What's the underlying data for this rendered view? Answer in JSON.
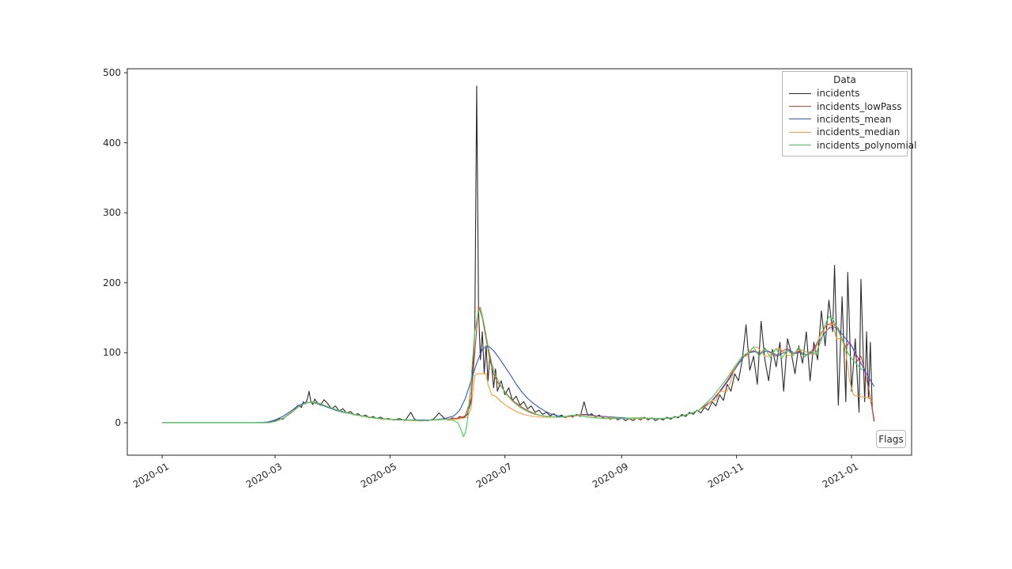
{
  "figure": {
    "background": "#ffffff"
  },
  "flags_button": {
    "label": "Flags"
  },
  "legend": {
    "title": "Data",
    "position": "upper right"
  },
  "chart_data": {
    "type": "line",
    "title": "",
    "xlabel": "",
    "ylabel": "",
    "x_unit": "days since 2020-01-01",
    "xlim_days": [
      -18.5,
      397.9
    ],
    "ylim": [
      -46.3,
      505.7
    ],
    "grid": false,
    "axis_color": "#262626",
    "y_ticks": [
      0,
      100,
      200,
      300,
      400,
      500
    ],
    "x_ticks": [
      {
        "day": 0,
        "label": "2020-01"
      },
      {
        "day": 60,
        "label": "2020-03"
      },
      {
        "day": 121,
        "label": "2020-05"
      },
      {
        "day": 182,
        "label": "2020-07"
      },
      {
        "day": 244,
        "label": "2020-09"
      },
      {
        "day": 305,
        "label": "2020-11"
      },
      {
        "day": 366,
        "label": "2021-01"
      }
    ],
    "series": [
      {
        "name": "incidents",
        "color": "#2b2b2b",
        "x": [
          0,
          6,
          12,
          18,
          24,
          30,
          36,
          42,
          48,
          54,
          57,
          60,
          62,
          64,
          66,
          68,
          70,
          72,
          74,
          75,
          76,
          77,
          78,
          79,
          80,
          81,
          82,
          84,
          86,
          88,
          90,
          92,
          94,
          96,
          98,
          100,
          102,
          104,
          106,
          108,
          110,
          112,
          114,
          116,
          118,
          120,
          123,
          126,
          129,
          132,
          134,
          136,
          138,
          141,
          144,
          147,
          150,
          152,
          154,
          156,
          158,
          160,
          162,
          164,
          166,
          167,
          168,
          169,
          170,
          171,
          172,
          173,
          174,
          175,
          176,
          177,
          178,
          180,
          182,
          184,
          186,
          188,
          190,
          192,
          194,
          196,
          198,
          200,
          202,
          204,
          206,
          208,
          210,
          212,
          214,
          216,
          218,
          220,
          222,
          224,
          226,
          228,
          230,
          232,
          234,
          236,
          238,
          240,
          242,
          244,
          246,
          248,
          250,
          252,
          254,
          256,
          258,
          260,
          262,
          264,
          266,
          268,
          270,
          272,
          274,
          276,
          278,
          280,
          282,
          284,
          286,
          288,
          290,
          292,
          294,
          296,
          298,
          300,
          302,
          304,
          306,
          308,
          310,
          312,
          314,
          316,
          318,
          320,
          322,
          324,
          326,
          328,
          330,
          332,
          334,
          336,
          338,
          340,
          342,
          344,
          346,
          348,
          350,
          352,
          354,
          356,
          357,
          359,
          361,
          363,
          364,
          366,
          368,
          370,
          371,
          373,
          374,
          375,
          376,
          377,
          378
        ],
        "y": [
          0,
          0,
          0,
          0,
          0,
          0,
          0,
          0,
          0,
          0,
          1,
          3,
          6,
          5,
          10,
          14,
          18,
          25,
          22,
          30,
          27,
          33,
          45,
          30,
          26,
          34,
          30,
          25,
          33,
          27,
          20,
          24,
          17,
          20,
          14,
          16,
          11,
          13,
          9,
          11,
          7,
          9,
          6,
          8,
          5,
          6,
          4,
          6,
          3,
          15,
          5,
          3,
          4,
          3,
          5,
          14,
          6,
          4,
          7,
          5,
          9,
          7,
          12,
          30,
          130,
          481,
          160,
          90,
          130,
          70,
          110,
          60,
          95,
          80,
          50,
          77,
          45,
          60,
          40,
          50,
          32,
          38,
          25,
          30,
          20,
          24,
          15,
          18,
          12,
          15,
          10,
          13,
          8,
          11,
          7,
          10,
          8,
          12,
          9,
          30,
          10,
          13,
          8,
          11,
          7,
          9,
          5,
          8,
          4,
          7,
          3,
          6,
          3,
          7,
          4,
          8,
          4,
          7,
          3,
          6,
          4,
          8,
          5,
          9,
          7,
          12,
          9,
          15,
          12,
          18,
          14,
          22,
          18,
          30,
          24,
          40,
          32,
          55,
          45,
          70,
          60,
          90,
          140,
          75,
          95,
          55,
          145,
          90,
          60,
          105,
          80,
          115,
          45,
          120,
          100,
          70,
          110,
          85,
          130,
          60,
          115,
          90,
          160,
          110,
          175,
          130,
          225,
          25,
          180,
          30,
          215,
          45,
          120,
          15,
          205,
          30,
          130,
          35,
          115,
          20,
          2
        ]
      },
      {
        "name": "incidents_lowPass",
        "color": "#e53a2e",
        "x": [
          0,
          10,
          20,
          30,
          40,
          50,
          56,
          60,
          64,
          68,
          72,
          76,
          80,
          84,
          88,
          92,
          96,
          100,
          104,
          108,
          112,
          116,
          120,
          126,
          132,
          138,
          144,
          150,
          155,
          158,
          161,
          164,
          166,
          168,
          170,
          172,
          174,
          176,
          178,
          181,
          184,
          187,
          190,
          193,
          196,
          199,
          202,
          205,
          208,
          212,
          216,
          220,
          224,
          228,
          232,
          236,
          240,
          245,
          250,
          255,
          260,
          265,
          270,
          275,
          280,
          285,
          288,
          292,
          296,
          300,
          304,
          308,
          311,
          314,
          317,
          320,
          323,
          326,
          329,
          332,
          335,
          338,
          341,
          344,
          347,
          350,
          353,
          356,
          359,
          361,
          363,
          365,
          367,
          369,
          371,
          373,
          375,
          377,
          378
        ],
        "y": [
          0,
          0,
          0,
          0,
          0,
          0,
          0,
          2,
          6,
          13,
          22,
          28,
          30,
          27,
          23,
          19,
          16,
          13,
          11,
          9,
          7,
          6,
          5,
          4,
          4,
          3,
          4,
          5,
          6,
          7,
          10,
          35,
          100,
          167,
          150,
          120,
          90,
          70,
          58,
          48,
          38,
          30,
          24,
          19,
          15,
          12,
          10,
          9,
          8,
          8,
          9,
          11,
          12,
          11,
          9,
          8,
          7,
          6,
          6,
          7,
          6,
          6,
          7,
          9,
          13,
          18,
          24,
          32,
          45,
          60,
          78,
          92,
          100,
          103,
          98,
          105,
          100,
          95,
          102,
          106,
          98,
          102,
          95,
          100,
          110,
          128,
          140,
          142,
          135,
          120,
          108,
          115,
          105,
          88,
          95,
          75,
          50,
          20,
          5
        ]
      },
      {
        "name": "incidents_mean",
        "color": "#3152e0",
        "x": [
          0,
          10,
          20,
          30,
          40,
          50,
          56,
          60,
          64,
          68,
          72,
          76,
          80,
          84,
          88,
          92,
          96,
          100,
          104,
          108,
          112,
          116,
          120,
          126,
          132,
          138,
          144,
          150,
          155,
          158,
          161,
          164,
          167,
          170,
          173,
          176,
          179,
          182,
          185,
          188,
          191,
          194,
          197,
          200,
          203,
          206,
          210,
          214,
          218,
          222,
          226,
          230,
          235,
          240,
          245,
          250,
          255,
          260,
          265,
          270,
          275,
          280,
          285,
          289,
          293,
          297,
          301,
          305,
          309,
          312,
          315,
          318,
          321,
          324,
          327,
          330,
          333,
          336,
          339,
          342,
          345,
          348,
          351,
          354,
          357,
          360,
          363,
          366,
          369,
          372,
          375,
          378
        ],
        "y": [
          0,
          0,
          0,
          0,
          0,
          0,
          1,
          4,
          9,
          16,
          24,
          29,
          29,
          26,
          22,
          18,
          15,
          13,
          11,
          9,
          7,
          6,
          5,
          4,
          4,
          4,
          4,
          6,
          10,
          18,
          35,
          60,
          85,
          105,
          110,
          103,
          92,
          80,
          68,
          55,
          44,
          35,
          28,
          22,
          17,
          13,
          10,
          9,
          10,
          11,
          12,
          10,
          9,
          8,
          7,
          6,
          7,
          6,
          6,
          7,
          9,
          13,
          18,
          25,
          34,
          47,
          62,
          80,
          95,
          100,
          102,
          99,
          103,
          100,
          96,
          100,
          104,
          99,
          101,
          97,
          100,
          112,
          126,
          135,
          137,
          130,
          120,
          110,
          95,
          80,
          65,
          52
        ]
      },
      {
        "name": "incidents_median",
        "color": "#ff9a3b",
        "x": [
          0,
          10,
          20,
          30,
          40,
          50,
          57,
          61,
          65,
          69,
          73,
          77,
          81,
          85,
          89,
          93,
          97,
          101,
          105,
          109,
          113,
          117,
          121,
          127,
          133,
          139,
          145,
          151,
          156,
          159,
          162,
          164,
          165,
          166,
          167,
          172,
          173,
          175,
          177,
          180,
          183,
          186,
          189,
          192,
          195,
          198,
          202,
          206,
          210,
          214,
          218,
          222,
          226,
          230,
          235,
          240,
          245,
          250,
          255,
          260,
          265,
          270,
          275,
          280,
          285,
          289,
          292,
          294,
          296,
          300,
          302,
          304,
          308,
          310,
          314,
          316,
          320,
          322,
          326,
          328,
          332,
          334,
          338,
          340,
          344,
          346,
          350,
          352,
          356,
          358,
          361,
          363,
          365,
          367,
          369,
          372,
          375,
          377
        ],
        "y": [
          0,
          0,
          0,
          0,
          0,
          0,
          0,
          3,
          8,
          16,
          24,
          29,
          29,
          26,
          22,
          18,
          15,
          12,
          10,
          8,
          7,
          5,
          5,
          4,
          3,
          3,
          4,
          5,
          5,
          6,
          8,
          20,
          45,
          68,
          70,
          70,
          55,
          40,
          38,
          30,
          24,
          19,
          15,
          12,
          10,
          9,
          8,
          8,
          8,
          8,
          9,
          11,
          10,
          9,
          8,
          7,
          6,
          6,
          6,
          6,
          6,
          7,
          9,
          13,
          18,
          24,
          32,
          32,
          45,
          45,
          60,
          78,
          95,
          95,
          108,
          108,
          95,
          95,
          106,
          106,
          96,
          96,
          104,
          104,
          98,
          98,
          130,
          130,
          142,
          120,
          120,
          100,
          60,
          40,
          38,
          37,
          36,
          30
        ]
      },
      {
        "name": "incidents_polynomial",
        "color": "#3ecf57",
        "x": [
          0,
          10,
          20,
          30,
          40,
          50,
          56,
          60,
          64,
          68,
          72,
          76,
          80,
          84,
          88,
          92,
          96,
          100,
          104,
          108,
          112,
          116,
          120,
          126,
          132,
          138,
          144,
          150,
          153,
          155,
          157,
          159,
          160,
          161,
          162,
          164,
          166,
          168,
          169,
          171,
          173,
          175,
          177,
          180,
          183,
          186,
          189,
          192,
          195,
          198,
          202,
          206,
          210,
          214,
          218,
          222,
          226,
          230,
          235,
          240,
          245,
          250,
          255,
          260,
          265,
          270,
          275,
          280,
          285,
          288,
          292,
          296,
          300,
          304,
          308,
          311,
          314,
          317,
          320,
          323,
          326,
          329,
          332,
          335,
          338,
          341,
          344,
          347,
          350,
          352,
          354,
          356,
          358,
          360,
          362,
          364,
          366,
          368,
          370,
          372
        ],
        "y": [
          0,
          0,
          0,
          0,
          0,
          0,
          0,
          2,
          6,
          13,
          22,
          28,
          30,
          27,
          23,
          19,
          16,
          13,
          11,
          9,
          7,
          6,
          5,
          4,
          4,
          3,
          4,
          5,
          4,
          3,
          0,
          -12,
          -20,
          -14,
          0,
          60,
          130,
          160,
          165,
          140,
          110,
          85,
          68,
          52,
          40,
          31,
          24,
          19,
          15,
          12,
          10,
          9,
          8,
          9,
          11,
          10,
          8,
          7,
          6,
          6,
          6,
          7,
          7,
          6,
          6,
          7,
          9,
          13,
          18,
          26,
          36,
          50,
          64,
          80,
          95,
          100,
          108,
          95,
          107,
          93,
          106,
          92,
          104,
          96,
          108,
          94,
          102,
          98,
          118,
          140,
          152,
          148,
          138,
          125,
          112,
          100,
          92,
          86,
          80,
          75
        ]
      }
    ]
  }
}
